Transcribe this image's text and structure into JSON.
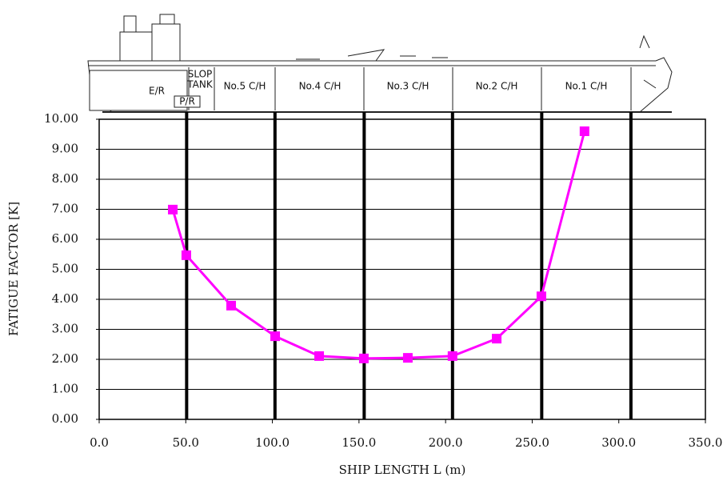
{
  "chart_data": {
    "type": "line",
    "x_label": "SHIP LENGTH L (m)",
    "y_label": "FATIGUE FACTOR [K]",
    "x": [
      42.5,
      50.3,
      76.2,
      101.6,
      127,
      152.8,
      178.2,
      204,
      229.5,
      255.3,
      280.2
    ],
    "values": [
      6.99,
      5.47,
      3.79,
      2.77,
      2.11,
      2.03,
      2.05,
      2.11,
      2.69,
      4.1,
      9.6
    ],
    "color": "#ff00ff",
    "bulkheads": [
      50.5,
      101.5,
      153,
      204,
      255.5,
      307
    ],
    "xlim": [
      0,
      350
    ],
    "ylim": [
      0,
      10
    ],
    "xticks": [
      {
        "value": 0,
        "label": "0.0"
      },
      {
        "value": 50,
        "label": "50.0"
      },
      {
        "value": 100,
        "label": "100.0"
      },
      {
        "value": 150,
        "label": "150.0"
      },
      {
        "value": 200,
        "label": "200.0"
      },
      {
        "value": 250,
        "label": "250.0"
      },
      {
        "value": 300,
        "label": "300.0"
      },
      {
        "value": 350,
        "label": "350.0"
      }
    ],
    "yticks": [
      {
        "value": 0,
        "label": "0.00"
      },
      {
        "value": 1,
        "label": "1.00"
      },
      {
        "value": 2,
        "label": "2.00"
      },
      {
        "value": 3,
        "label": "3.00"
      },
      {
        "value": 4,
        "label": "4.00"
      },
      {
        "value": 5,
        "label": "5.00"
      },
      {
        "value": 6,
        "label": "6.00"
      },
      {
        "value": 7,
        "label": "7.00"
      },
      {
        "value": 8,
        "label": "8.00"
      },
      {
        "value": 9,
        "label": "9.00"
      },
      {
        "value": 10,
        "label": "10.00"
      }
    ],
    "grid": true,
    "ship_labels": [
      "SLOP",
      "TANK",
      "No.5 C/H",
      "No.4 C/H",
      "No.3 C/H",
      "No.2 C/H",
      "No.1 C/H",
      "E/R",
      "P/R"
    ]
  }
}
